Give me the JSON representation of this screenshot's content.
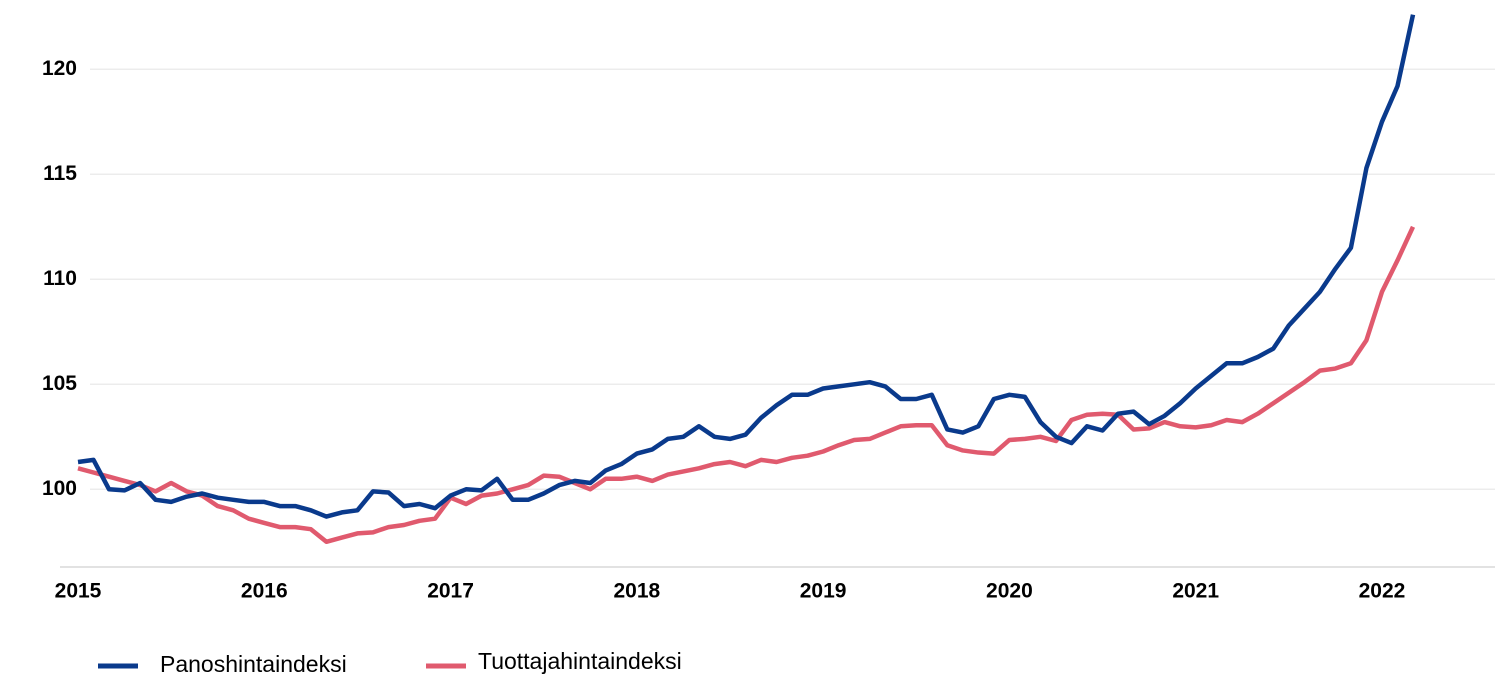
{
  "chart_data": {
    "type": "line",
    "categories": [
      "2015",
      null,
      null,
      null,
      null,
      null,
      null,
      null,
      null,
      null,
      null,
      null,
      "2016",
      null,
      null,
      null,
      null,
      null,
      null,
      null,
      null,
      null,
      null,
      null,
      "2017",
      null,
      null,
      null,
      null,
      null,
      null,
      null,
      null,
      null,
      null,
      null,
      "2018",
      null,
      null,
      null,
      null,
      null,
      null,
      null,
      null,
      null,
      null,
      null,
      "2019",
      null,
      null,
      null,
      null,
      null,
      null,
      null,
      null,
      null,
      null,
      null,
      "2020",
      null,
      null,
      null,
      null,
      null,
      null,
      null,
      null,
      null,
      null,
      null,
      "2021",
      null,
      null,
      null,
      null,
      null,
      null,
      null,
      null,
      null,
      null,
      null,
      "2022",
      null,
      null
    ],
    "series": [
      {
        "name": "Panoshintaindeksi",
        "color": "#0a3a8c",
        "values": [
          101.3,
          101.4,
          100.0,
          99.95,
          100.3,
          99.5,
          99.4,
          99.65,
          99.8,
          99.6,
          99.5,
          99.4,
          99.4,
          99.2,
          99.2,
          99.0,
          98.7,
          98.9,
          99.0,
          99.9,
          99.85,
          99.2,
          99.3,
          99.1,
          99.7,
          100.0,
          99.95,
          100.5,
          99.5,
          99.5,
          99.8,
          100.2,
          100.4,
          100.3,
          100.9,
          101.2,
          101.7,
          101.9,
          102.4,
          102.5,
          103.0,
          102.5,
          102.4,
          102.6,
          103.4,
          104.0,
          104.5,
          104.5,
          104.8,
          104.9,
          105.0,
          105.1,
          104.9,
          104.3,
          104.3,
          104.5,
          102.85,
          102.7,
          103.0,
          104.3,
          104.5,
          104.4,
          103.2,
          102.5,
          102.2,
          103.0,
          102.8,
          103.6,
          103.7,
          103.1,
          103.5,
          104.1,
          104.8,
          105.4,
          106.0,
          106.0,
          106.3,
          106.7,
          107.8,
          108.6,
          109.4,
          110.5,
          111.5,
          115.3,
          117.5,
          119.2,
          122.6
        ]
      },
      {
        "name": "Tuottajahintaindeksi",
        "color": "#e05a6e",
        "values": [
          101.0,
          100.8,
          100.6,
          100.4,
          100.2,
          99.9,
          100.3,
          99.9,
          99.7,
          99.2,
          99.0,
          98.6,
          98.4,
          98.2,
          98.2,
          98.1,
          97.5,
          97.7,
          97.9,
          97.95,
          98.2,
          98.3,
          98.5,
          98.6,
          99.6,
          99.3,
          99.7,
          99.8,
          100.0,
          100.2,
          100.65,
          100.6,
          100.3,
          100.0,
          100.5,
          100.5,
          100.6,
          100.4,
          100.7,
          100.85,
          101.0,
          101.2,
          101.3,
          101.1,
          101.4,
          101.3,
          101.5,
          101.6,
          101.8,
          102.1,
          102.35,
          102.4,
          102.7,
          103.0,
          103.05,
          103.05,
          102.1,
          101.85,
          101.75,
          101.7,
          102.35,
          102.4,
          102.5,
          102.3,
          103.3,
          103.55,
          103.6,
          103.55,
          102.85,
          102.9,
          103.2,
          103.0,
          102.95,
          103.05,
          103.3,
          103.2,
          103.6,
          104.1,
          104.6,
          105.1,
          105.65,
          105.75,
          106.0,
          107.1,
          109.4,
          110.9,
          112.5
        ]
      }
    ],
    "ylim": [
      96.3,
      123.3
    ],
    "yticks": [
      100,
      105,
      110,
      115,
      120
    ],
    "grid": true,
    "legend": "bottom"
  }
}
